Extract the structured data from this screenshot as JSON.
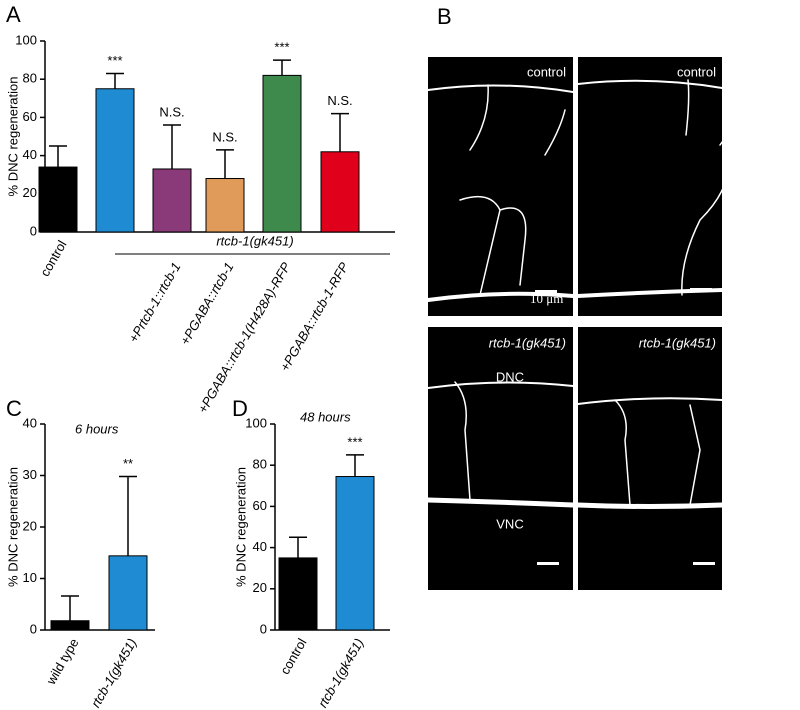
{
  "panel_labels": [
    "A",
    "B",
    "C",
    "D"
  ],
  "chart_data": [
    {
      "type": "bar",
      "ylabel": "% DNC regeneration",
      "categories": [
        "control",
        null,
        "+Prtcb-1::rtcb-1",
        "+PGABA::rtcb-1",
        "+PGABA::rtcb-1(H428A)-RFP",
        "+PGABA::rtcb-1-RFP"
      ],
      "group_label": "rtcb-1(gk451)",
      "values": [
        34,
        75,
        33,
        28,
        82,
        42
      ],
      "errors": [
        11,
        8,
        23,
        15,
        8,
        20
      ],
      "annotations": [
        null,
        "***",
        "N.S.",
        "N.S.",
        "***",
        "N.S."
      ],
      "colors": [
        "#000000",
        "#1f8bd2",
        "#8a3a78",
        "#e09a5a",
        "#3e8a4c",
        "#e0001b"
      ],
      "ylim": [
        0,
        100
      ],
      "yticks": [
        0,
        20,
        40,
        60,
        80,
        100
      ]
    },
    {
      "type": "bar",
      "subtitle": "6 hours",
      "ylabel": "% DNC regeneration",
      "categories": [
        "wild type",
        "rtcb-1(gk451)"
      ],
      "values": [
        1.8,
        14.4
      ],
      "errors": [
        4.8,
        15.4
      ],
      "annotations": [
        null,
        "**"
      ],
      "colors": [
        "#000000",
        "#1f8bd2"
      ],
      "ylim": [
        0,
        40
      ],
      "yticks": [
        0,
        10,
        20,
        30,
        40
      ]
    },
    {
      "type": "bar",
      "subtitle": "48 hours",
      "ylabel": "% DNC regeneration",
      "categories": [
        "control",
        "rtcb-1(gk451)"
      ],
      "values": [
        35,
        74.5
      ],
      "errors": [
        10,
        10.5
      ],
      "annotations": [
        null,
        "***"
      ],
      "colors": [
        "#000000",
        "#1f8bd2"
      ],
      "ylim": [
        0,
        100
      ],
      "yticks": [
        0,
        20,
        40,
        60,
        80,
        100
      ]
    }
  ],
  "images": [
    {
      "label": "control"
    },
    {
      "label": "control"
    },
    {
      "label": "rtcb-1(gk451)"
    },
    {
      "label": "rtcb-1(gk451)"
    }
  ],
  "scale_bar": "10 μm",
  "cord_labels": [
    "DNC",
    "VNC"
  ]
}
